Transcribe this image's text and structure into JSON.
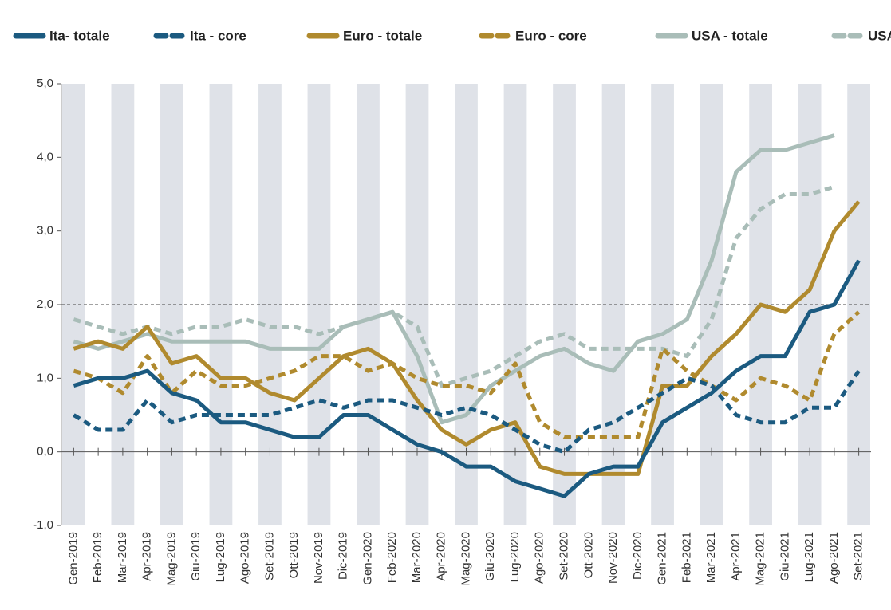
{
  "chart_data": {
    "type": "line",
    "categories": [
      "Gen-2019",
      "Feb-2019",
      "Mar-2019",
      "Apr-2019",
      "Mag-2019",
      "Giu-2019",
      "Lug-2019",
      "Ago-2019",
      "Set-2019",
      "Ott-2019",
      "Nov-2019",
      "Dic-2019",
      "Gen-2020",
      "Feb-2020",
      "Mar-2020",
      "Apr-2020",
      "Mag-2020",
      "Giu-2020",
      "Lug-2020",
      "Ago-2020",
      "Set-2020",
      "Ott-2020",
      "Nov-2020",
      "Dic-2020",
      "Gen-2021",
      "Feb-2021",
      "Mar-2021",
      "Apr-2021",
      "Mag-2021",
      "Giu-2021",
      "Lug-2021",
      "Ago-2021",
      "Set-2021"
    ],
    "series": [
      {
        "name": "Ita- totale",
        "color": "#1b5a80",
        "dashed": false,
        "values": [
          0.9,
          1.0,
          1.0,
          1.1,
          0.8,
          0.7,
          0.4,
          0.4,
          0.3,
          0.2,
          0.2,
          0.5,
          0.5,
          0.3,
          0.1,
          0.0,
          -0.2,
          -0.2,
          -0.4,
          -0.5,
          -0.6,
          -0.3,
          -0.2,
          -0.2,
          0.4,
          0.6,
          0.8,
          1.1,
          1.3,
          1.3,
          1.9,
          2.0,
          2.6
        ]
      },
      {
        "name": "Ita - core",
        "color": "#1b5a80",
        "dashed": true,
        "values": [
          0.5,
          0.3,
          0.3,
          0.7,
          0.4,
          0.5,
          0.5,
          0.5,
          0.5,
          0.6,
          0.7,
          0.6,
          0.7,
          0.7,
          0.6,
          0.5,
          0.6,
          0.5,
          0.3,
          0.1,
          0.0,
          0.3,
          0.4,
          0.6,
          0.8,
          1.0,
          0.9,
          0.5,
          0.4,
          0.4,
          0.6,
          0.6,
          1.1
        ]
      },
      {
        "name": "Euro - totale",
        "color": "#b08a2e",
        "dashed": false,
        "values": [
          1.4,
          1.5,
          1.4,
          1.7,
          1.2,
          1.3,
          1.0,
          1.0,
          0.8,
          0.7,
          1.0,
          1.3,
          1.4,
          1.2,
          0.7,
          0.3,
          0.1,
          0.3,
          0.4,
          -0.2,
          -0.3,
          -0.3,
          -0.3,
          -0.3,
          0.9,
          0.9,
          1.3,
          1.6,
          2.0,
          1.9,
          2.2,
          3.0,
          3.4
        ]
      },
      {
        "name": "Euro - core",
        "color": "#b08a2e",
        "dashed": true,
        "values": [
          1.1,
          1.0,
          0.8,
          1.3,
          0.8,
          1.1,
          0.9,
          0.9,
          1.0,
          1.1,
          1.3,
          1.3,
          1.1,
          1.2,
          1.0,
          0.9,
          0.9,
          0.8,
          1.2,
          0.4,
          0.2,
          0.2,
          0.2,
          0.2,
          1.4,
          1.1,
          0.9,
          0.7,
          1.0,
          0.9,
          0.7,
          1.6,
          1.9
        ]
      },
      {
        "name": "USA - totale",
        "color": "#a9bdb8",
        "dashed": false,
        "values": [
          1.5,
          1.4,
          1.5,
          1.6,
          1.5,
          1.5,
          1.5,
          1.5,
          1.4,
          1.4,
          1.4,
          1.7,
          1.8,
          1.9,
          1.3,
          0.4,
          0.5,
          0.9,
          1.1,
          1.3,
          1.4,
          1.2,
          1.1,
          1.5,
          1.6,
          1.8,
          2.6,
          3.8,
          4.1,
          4.1,
          4.2,
          4.3,
          null
        ]
      },
      {
        "name": "USA - core",
        "color": "#a9bdb8",
        "dashed": true,
        "values": [
          1.8,
          1.7,
          1.6,
          1.7,
          1.6,
          1.7,
          1.7,
          1.8,
          1.7,
          1.7,
          1.6,
          1.7,
          1.8,
          1.9,
          1.7,
          0.9,
          1.0,
          1.1,
          1.3,
          1.5,
          1.6,
          1.4,
          1.4,
          1.4,
          1.4,
          1.3,
          1.8,
          2.9,
          3.3,
          3.5,
          3.5,
          3.6,
          null
        ]
      }
    ],
    "ylim": [
      -1,
      5
    ],
    "yticks": [
      {
        "value": -1,
        "label": "-1,0"
      },
      {
        "value": 0,
        "label": "0,0"
      },
      {
        "value": 1,
        "label": "1,0"
      },
      {
        "value": 2,
        "label": "2,0"
      },
      {
        "value": 3,
        "label": "3,0"
      },
      {
        "value": 4,
        "label": "4,0"
      },
      {
        "value": 5,
        "label": "5,0"
      }
    ],
    "reference_line": 2,
    "legend": "top"
  }
}
